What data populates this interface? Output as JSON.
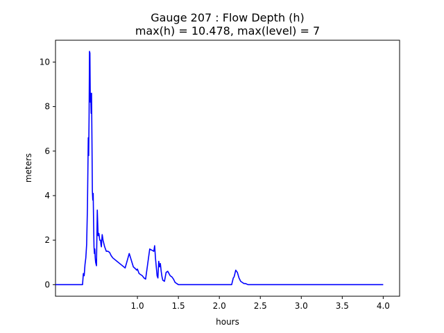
{
  "chart_data": {
    "type": "line",
    "title_line1": "Gauge 207 : Flow Depth (h)",
    "title_line2": "max(h) =  10.478,    max(level) = 7",
    "xlabel": "hours",
    "ylabel": "meters",
    "xlim": [
      0.0,
      4.2
    ],
    "ylim": [
      -0.52,
      10.98
    ],
    "xticks": [
      1.0,
      1.5,
      2.0,
      2.5,
      3.0,
      3.5,
      4.0
    ],
    "xtick_labels": [
      "1.0",
      "1.5",
      "2.0",
      "2.5",
      "3.0",
      "3.5",
      "4.0"
    ],
    "yticks": [
      0,
      2,
      4,
      6,
      8,
      10
    ],
    "ytick_labels": [
      "0",
      "2",
      "4",
      "6",
      "8",
      "10"
    ],
    "grid": false,
    "series": [
      {
        "color": "#0000ff",
        "x": [
          0.0,
          0.33,
          0.34,
          0.35,
          0.36,
          0.37,
          0.38,
          0.39,
          0.4,
          0.405,
          0.41,
          0.415,
          0.42,
          0.425,
          0.43,
          0.435,
          0.44,
          0.445,
          0.45,
          0.455,
          0.46,
          0.465,
          0.47,
          0.475,
          0.48,
          0.485,
          0.49,
          0.5,
          0.51,
          0.52,
          0.53,
          0.54,
          0.55,
          0.555,
          0.56,
          0.565,
          0.57,
          0.58,
          0.6,
          0.62,
          0.63,
          0.64,
          0.66,
          0.68,
          0.7,
          0.75,
          0.8,
          0.85,
          0.9,
          0.95,
          0.98,
          0.99,
          1.0,
          1.01,
          1.02,
          1.04,
          1.06,
          1.08,
          1.1,
          1.15,
          1.2,
          1.21,
          1.22,
          1.23,
          1.24,
          1.25,
          1.26,
          1.27,
          1.28,
          1.29,
          1.3,
          1.31,
          1.33,
          1.35,
          1.37,
          1.4,
          1.42,
          1.44,
          1.46,
          1.48,
          1.5,
          1.55,
          2.15,
          2.17,
          2.18,
          2.19,
          2.2,
          2.21,
          2.22,
          2.24,
          2.26,
          2.28,
          2.3,
          2.32,
          2.35,
          4.0
        ],
        "y": [
          0.0,
          0.0,
          0.5,
          0.4,
          0.9,
          1.2,
          1.8,
          3.5,
          6.6,
          5.8,
          7.6,
          10.478,
          10.4,
          8.2,
          8.6,
          7.7,
          8.6,
          6.5,
          4.2,
          3.8,
          4.1,
          2.8,
          1.7,
          1.4,
          1.6,
          1.2,
          1.0,
          0.85,
          3.35,
          2.2,
          2.3,
          2.0,
          2.0,
          1.8,
          1.7,
          2.0,
          2.25,
          2.0,
          1.7,
          1.5,
          1.5,
          1.5,
          1.45,
          1.3,
          1.2,
          1.05,
          0.9,
          0.75,
          1.4,
          0.8,
          0.7,
          0.65,
          0.7,
          0.6,
          0.5,
          0.45,
          0.4,
          0.3,
          0.25,
          1.6,
          1.5,
          1.75,
          1.2,
          0.8,
          0.4,
          0.3,
          1.05,
          0.8,
          0.95,
          0.6,
          0.35,
          0.2,
          0.15,
          0.55,
          0.6,
          0.4,
          0.35,
          0.25,
          0.1,
          0.05,
          0.0,
          0.0,
          0.0,
          0.3,
          0.35,
          0.5,
          0.65,
          0.6,
          0.55,
          0.3,
          0.15,
          0.1,
          0.05,
          0.05,
          0.0,
          0.0
        ]
      }
    ]
  }
}
